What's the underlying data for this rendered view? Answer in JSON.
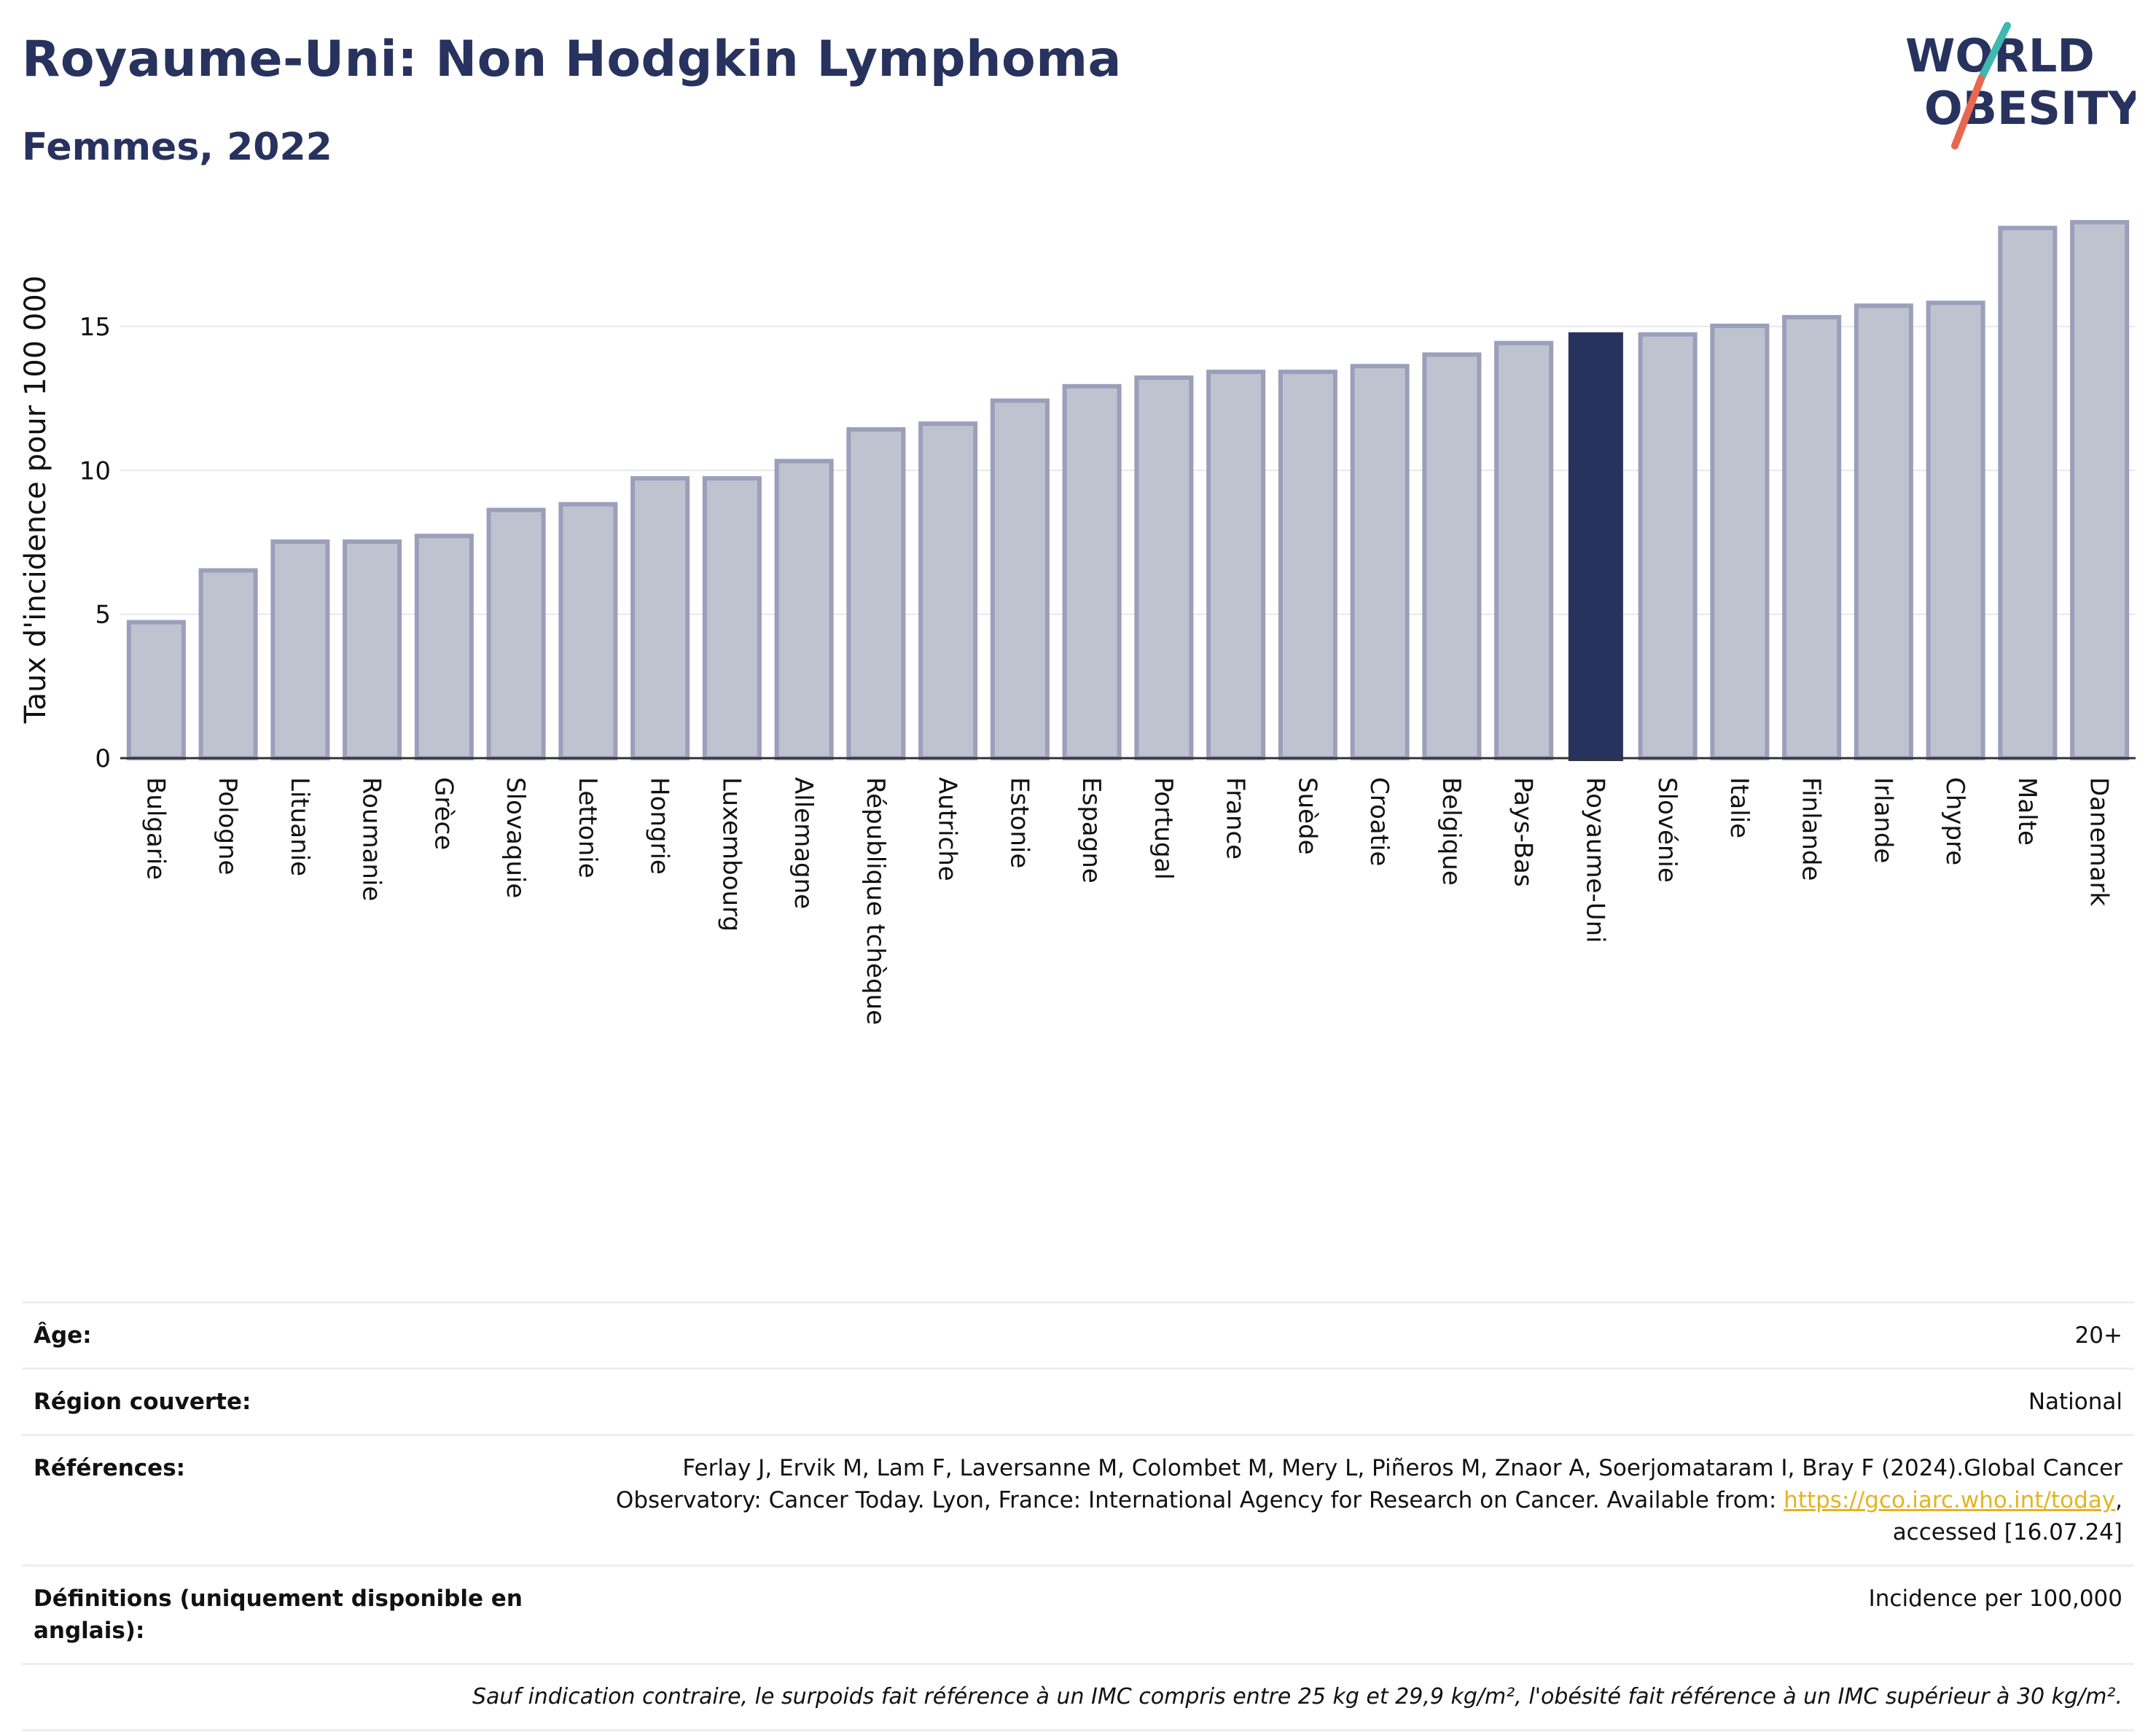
{
  "header": {
    "title": "Royaume-Uni: Non Hodgkin Lymphoma",
    "subtitle": "Femmes, 2022"
  },
  "logo": {
    "line1": "WORLD",
    "line2": "OBESITY",
    "text_color": "#27325e",
    "slash_colors": [
      "#3fb8b0",
      "#e8674f"
    ]
  },
  "colors": {
    "bar_default": "#bfc3cf",
    "bar_default_border": "#9aa0bb",
    "bar_highlight": "#27325e",
    "grid": "#e6e8ee",
    "axis": "#333333"
  },
  "chart_data": {
    "type": "bar",
    "categories": [
      "Bulgarie",
      "Pologne",
      "Lituanie",
      "Roumanie",
      "Grèce",
      "Slovaquie",
      "Lettonie",
      "Hongrie",
      "Luxembourg",
      "Allemagne",
      "République tchèque",
      "Autriche",
      "Estonie",
      "Espagne",
      "Portugal",
      "France",
      "Suède",
      "Croatie",
      "Belgique",
      "Pays-Bas",
      "Royaume-Uni",
      "Slovénie",
      "Italie",
      "Finlande",
      "Irlande",
      "Chypre",
      "Malte",
      "Danemark"
    ],
    "values": [
      4.8,
      6.6,
      7.6,
      7.6,
      7.8,
      8.7,
      8.9,
      9.8,
      9.8,
      10.4,
      11.5,
      11.7,
      12.5,
      13.0,
      13.3,
      13.5,
      13.5,
      13.7,
      14.1,
      14.5,
      14.8,
      14.8,
      15.1,
      15.4,
      15.8,
      15.9,
      18.5,
      18.7
    ],
    "highlight": "Royaume-Uni",
    "ylabel": "Taux d'incidence pour 100 000",
    "xlabel": "",
    "ylim": [
      0,
      19
    ],
    "yticks": [
      0,
      5,
      10,
      15
    ],
    "grid": true
  },
  "info": {
    "age_label": "Âge:",
    "age_value": "20+",
    "region_label": "Région couverte:",
    "region_value": "National",
    "references_label": "Références:",
    "references_text": "Ferlay J, Ervik M, Lam F, Laversanne M, Colombet M, Mery L, Piñeros M, Znaor A, Soerjomataram I, Bray F (2024).Global Cancer Observatory: Cancer Today. Lyon, France: International Agency for Research on Cancer. Available from: ",
    "references_link": "https://gco.iarc.who.int/today",
    "references_suffix": ", accessed [16.07.24]",
    "definitions_label": "Définitions (uniquement disponible en anglais):",
    "definitions_value": "Incidence per 100,000",
    "note": "Sauf indication contraire, le surpoids fait référence à un IMC compris entre 25 kg et 29,9 kg/m², l'obésité fait référence à un IMC supérieur à 30 kg/m²."
  }
}
